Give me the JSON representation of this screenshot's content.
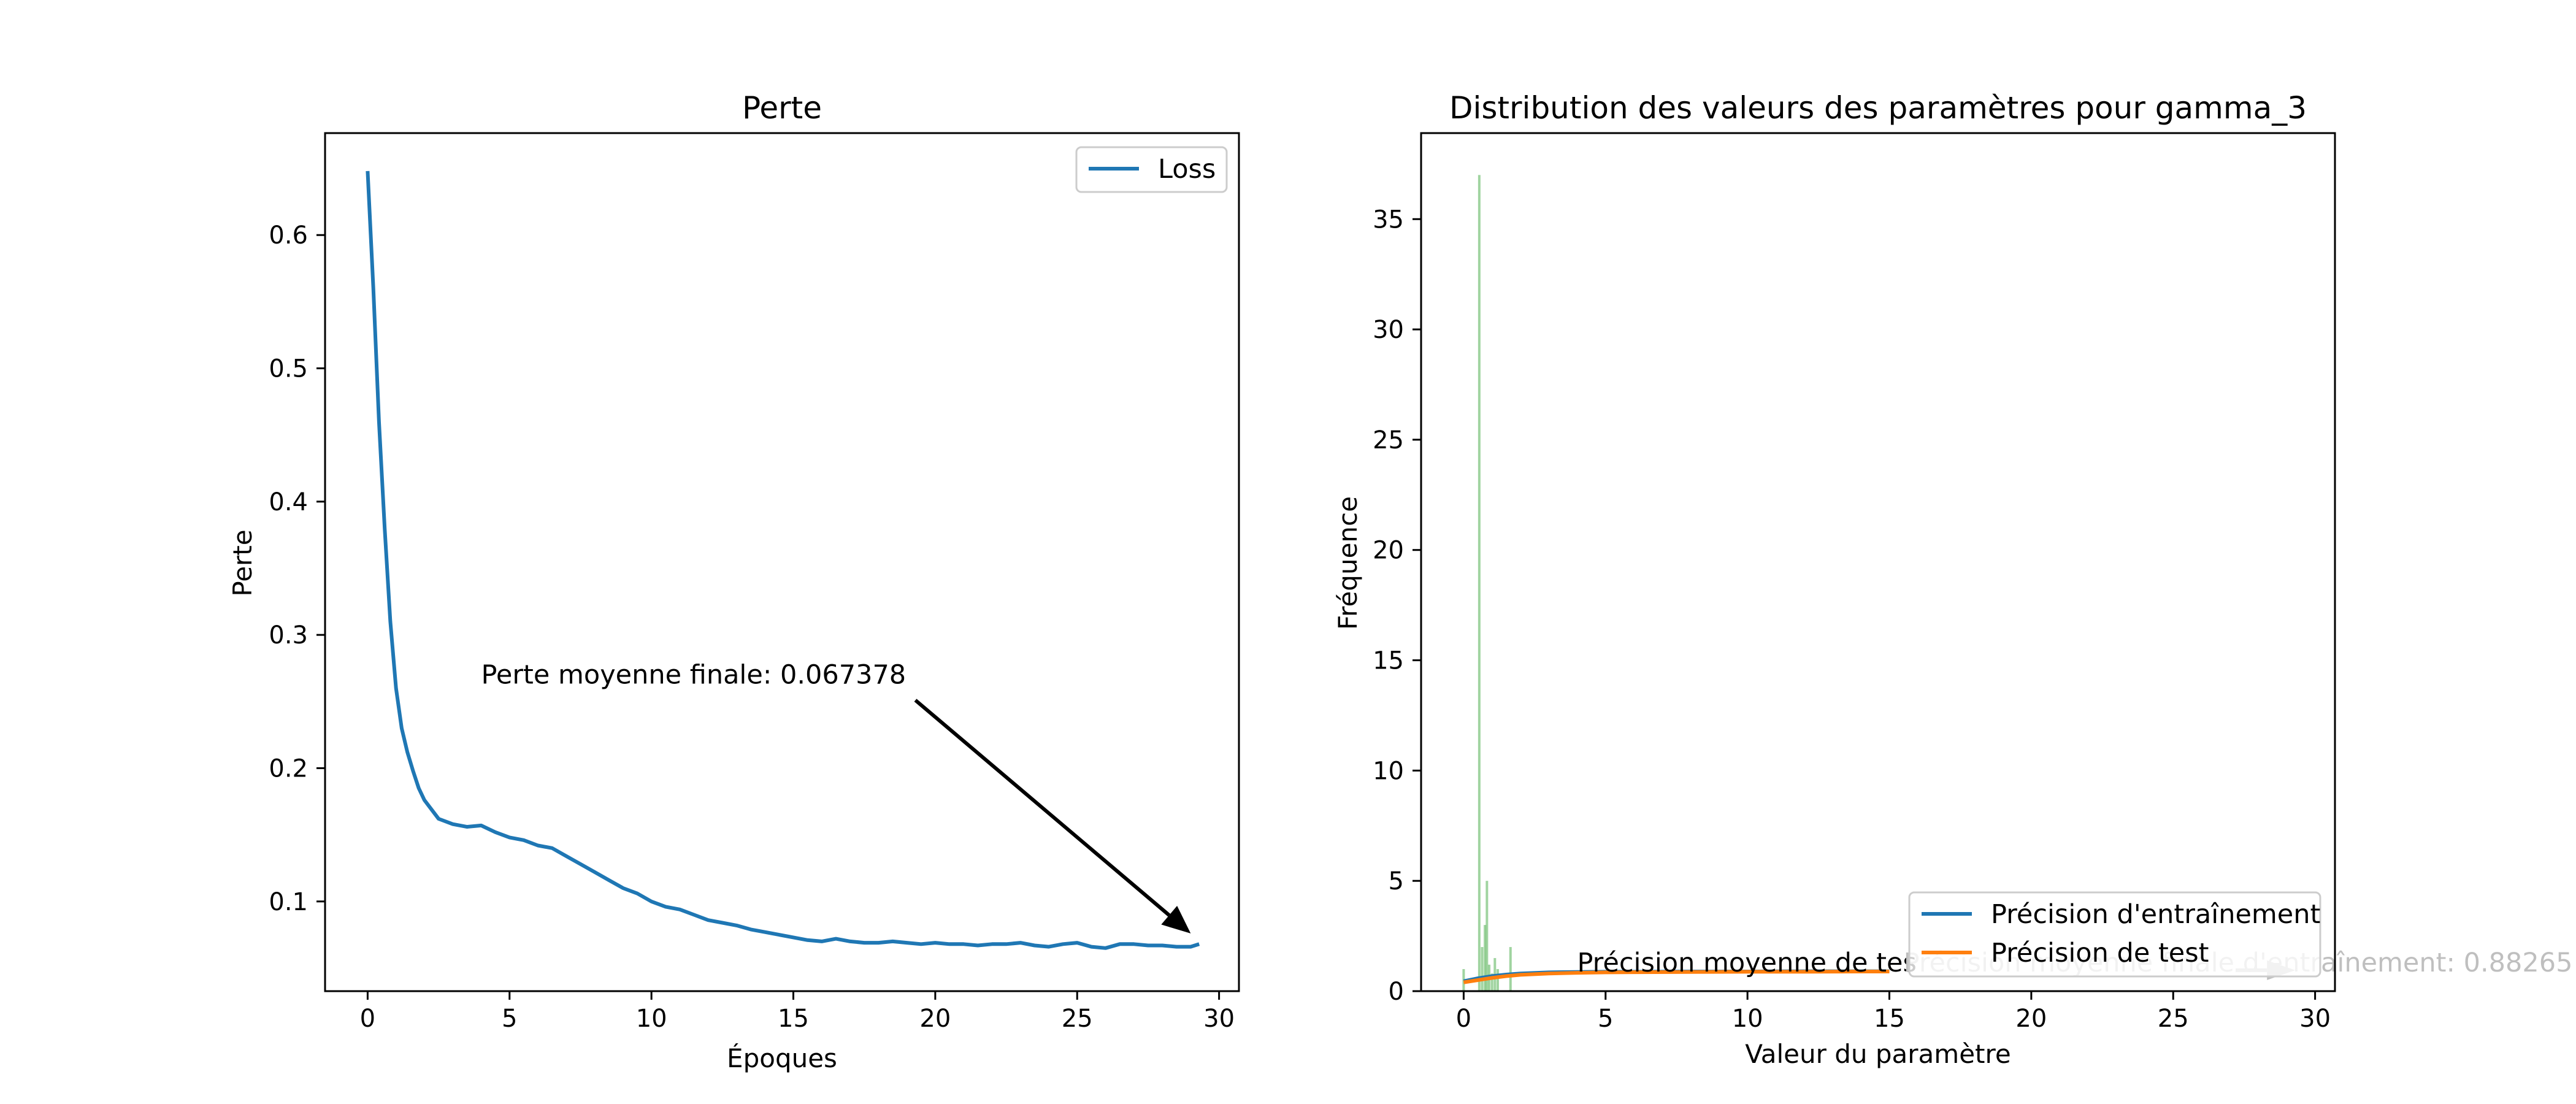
{
  "chart_data": [
    {
      "type": "line",
      "title": "Perte",
      "xlabel": "Époques",
      "ylabel": "Perte",
      "xlim": [
        -1.5,
        30.7
      ],
      "ylim": [
        0.0327,
        0.6765
      ],
      "xticks": [
        0,
        5,
        10,
        15,
        20,
        25,
        30
      ],
      "yticks": [
        0.1,
        0.2,
        0.3,
        0.4,
        0.5,
        0.6
      ],
      "ytick_labels": [
        "0.1",
        "0.2",
        "0.3",
        "0.4",
        "0.5",
        "0.6"
      ],
      "legend_position": "upper right",
      "series": [
        {
          "name": "Loss",
          "color": "#1f77b4",
          "x": [
            0,
            0.2,
            0.4,
            0.6,
            0.8,
            1.0,
            1.2,
            1.4,
            1.6,
            1.8,
            2.0,
            2.5,
            3.0,
            3.5,
            4.0,
            4.5,
            5.0,
            5.5,
            6.0,
            6.5,
            7.0,
            7.5,
            8.0,
            8.5,
            9.0,
            9.5,
            10.0,
            10.5,
            11.0,
            11.5,
            12.0,
            12.5,
            13.0,
            13.5,
            14.0,
            14.5,
            15.0,
            15.5,
            16.0,
            16.5,
            17.0,
            17.5,
            18.0,
            18.5,
            19.0,
            19.5,
            20.0,
            20.5,
            21.0,
            21.5,
            22.0,
            22.5,
            23.0,
            23.5,
            24.0,
            24.5,
            25.0,
            25.5,
            26.0,
            26.5,
            27.0,
            27.5,
            28.0,
            28.5,
            29.0,
            29.3
          ],
          "y": [
            0.648,
            0.56,
            0.46,
            0.38,
            0.31,
            0.26,
            0.23,
            0.212,
            0.198,
            0.185,
            0.176,
            0.162,
            0.158,
            0.156,
            0.157,
            0.152,
            0.148,
            0.146,
            0.142,
            0.14,
            0.134,
            0.128,
            0.122,
            0.116,
            0.11,
            0.106,
            0.1,
            0.096,
            0.094,
            0.09,
            0.086,
            0.084,
            0.082,
            0.079,
            0.077,
            0.075,
            0.073,
            0.071,
            0.07,
            0.072,
            0.07,
            0.069,
            0.069,
            0.07,
            0.069,
            0.068,
            0.069,
            0.068,
            0.068,
            0.067,
            0.068,
            0.068,
            0.069,
            0.067,
            0.066,
            0.068,
            0.069,
            0.066,
            0.065,
            0.068,
            0.068,
            0.067,
            0.067,
            0.066,
            0.066,
            0.068
          ]
        }
      ],
      "annotations": [
        {
          "text": "Perte moyenne finale: 0.067378",
          "text_x": 4.0,
          "text_y": 0.27,
          "arrow_from": [
            19.3,
            0.251
          ],
          "arrow_to": [
            29.0,
            0.076
          ]
        }
      ]
    },
    {
      "type": "bar",
      "title": "Distribution des valeurs des paramètres pour gamma_3",
      "xlabel": "Valeur du paramètre",
      "ylabel": "Fréquence",
      "xlim": [
        -1.5,
        30.7
      ],
      "ylim": [
        0,
        38.9
      ],
      "xticks": [
        0,
        5,
        10,
        15,
        20,
        25,
        30
      ],
      "yticks": [
        0,
        5,
        10,
        15,
        20,
        25,
        30,
        35
      ],
      "ytick_labels": [
        "0",
        "5",
        "10",
        "15",
        "20",
        "25",
        "30",
        "35"
      ],
      "legend_position": "lower right",
      "histogram": {
        "color": "#2ca02c",
        "bins": [
          {
            "x": 0.0,
            "value": 1.0
          },
          {
            "x": 0.55,
            "value": 37.0
          },
          {
            "x": 0.65,
            "value": 2.0
          },
          {
            "x": 0.75,
            "value": 3.0
          },
          {
            "x": 0.82,
            "value": 5.0
          },
          {
            "x": 0.9,
            "value": 1.2
          },
          {
            "x": 1.0,
            "value": 0.8
          },
          {
            "x": 1.1,
            "value": 1.5
          },
          {
            "x": 1.2,
            "value": 1.0
          },
          {
            "x": 1.65,
            "value": 2.0
          }
        ]
      },
      "series": [
        {
          "name": "Précision d'entraînement",
          "color": "#1f77b4",
          "x": [
            0,
            0.5,
            1,
            1.5,
            2,
            3,
            4,
            5,
            6,
            8,
            10,
            12,
            14,
            15
          ],
          "y": [
            0.45,
            0.58,
            0.68,
            0.75,
            0.8,
            0.85,
            0.87,
            0.88,
            0.88,
            0.89,
            0.89,
            0.9,
            0.9,
            0.9
          ]
        },
        {
          "name": "Précision de test",
          "color": "#ff7f0e",
          "x": [
            0,
            0.5,
            1,
            1.5,
            2,
            3,
            4,
            5,
            6,
            8,
            10,
            12,
            14,
            15
          ],
          "y": [
            0.4,
            0.5,
            0.6,
            0.68,
            0.74,
            0.8,
            0.83,
            0.85,
            0.86,
            0.87,
            0.88,
            0.88,
            0.89,
            0.89
          ]
        }
      ],
      "annotations": [
        {
          "text": "Précision moyenne de tes",
          "text_x": 4.0,
          "text_y": 1.0,
          "color": "#000000"
        },
        {
          "text": "Précision moyenne finale d'entraînement: 0.88265",
          "text_x": 15.5,
          "text_y": 1.0,
          "color": "#bfbfbf",
          "arrow_from": [
            27.2,
            0.95
          ],
          "arrow_to": [
            29.3,
            0.95
          ]
        }
      ]
    }
  ]
}
